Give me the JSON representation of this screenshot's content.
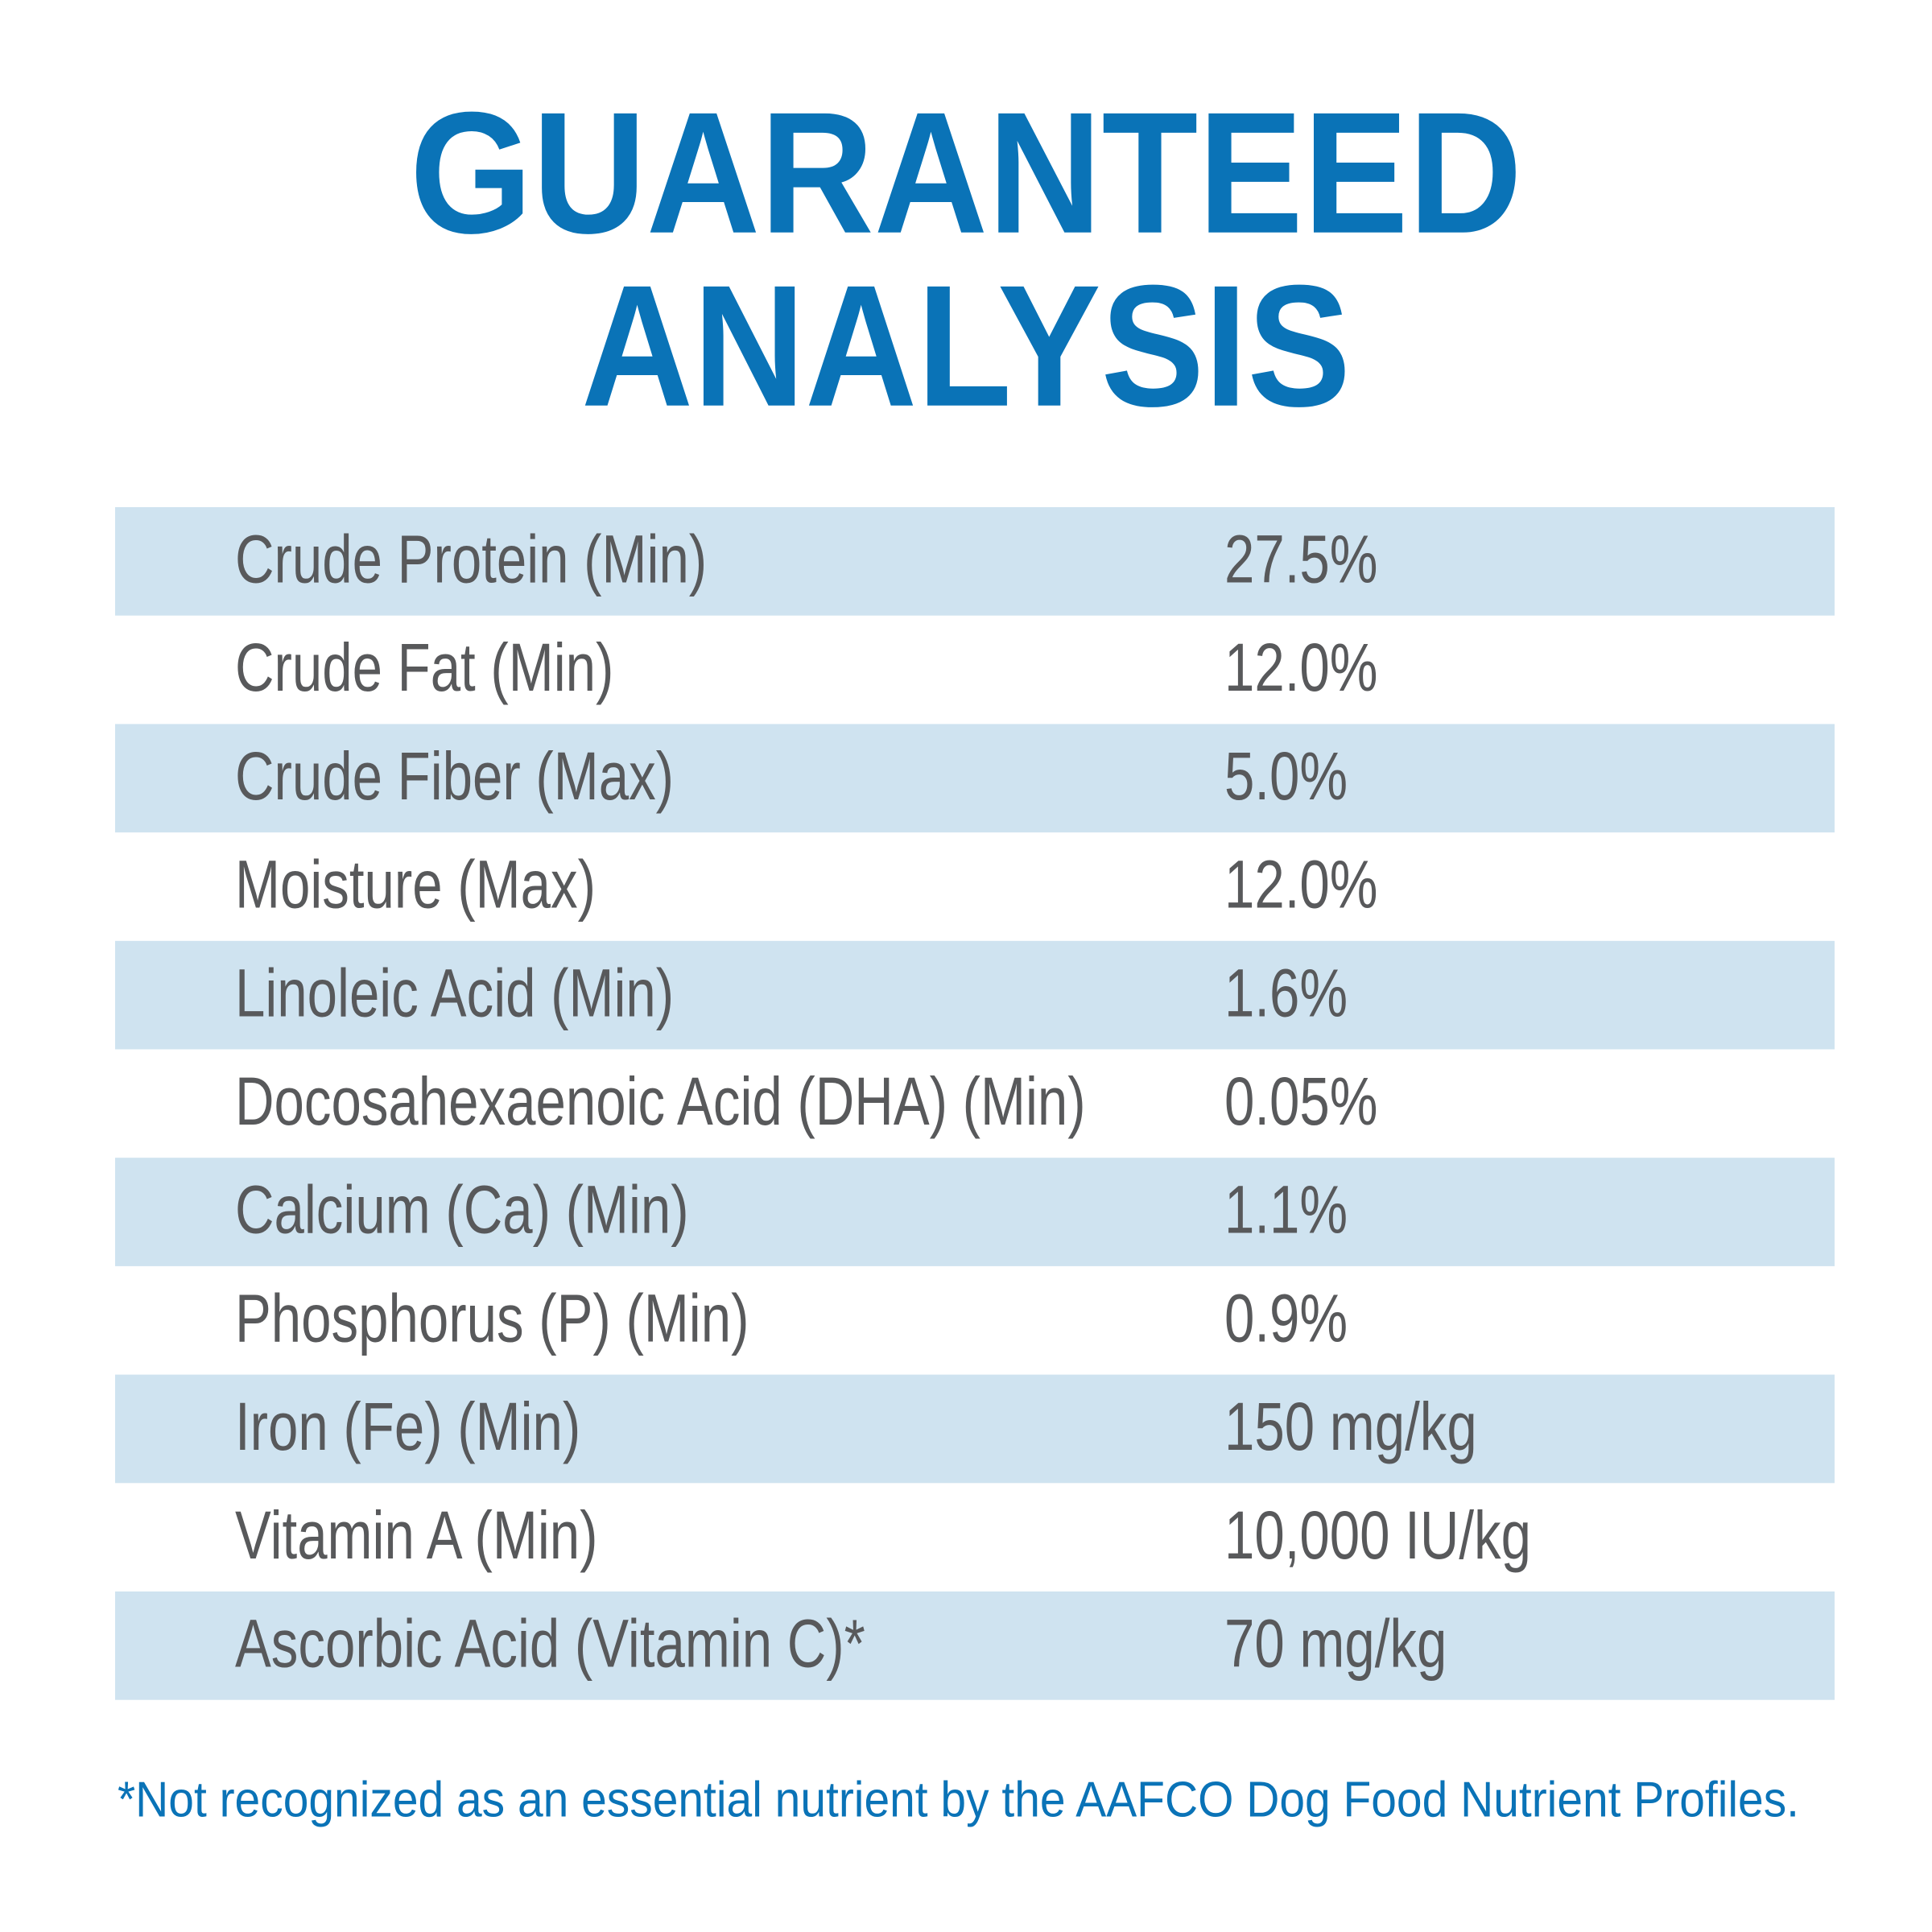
{
  "header": {
    "title": [
      "GUARANTEED",
      "ANALYSIS"
    ]
  },
  "table": {
    "rows": [
      [
        "Crude Protein (Min)",
        "27.5%"
      ],
      [
        "Crude Fat (Min)",
        "12.0%"
      ],
      [
        "Crude Fiber (Max)",
        "5.0%"
      ],
      [
        "Moisture (Max)",
        "12.0%"
      ],
      [
        "Linoleic Acid (Min)",
        "1.6%"
      ],
      [
        "Docosahexaenoic Acid (DHA) (Min)",
        "0.05%"
      ],
      [
        "Calcium (Ca) (Min)",
        "1.1%"
      ],
      [
        "Phosphorus (P) (Min)",
        "0.9%"
      ],
      [
        "Iron (Fe) (Min)",
        "150 mg/kg"
      ],
      [
        "Vitamin A (Min)",
        "10,000 IU/kg"
      ],
      [
        "Ascorbic Acid (Vitamin C)*",
        "70 mg/kg"
      ]
    ]
  },
  "footnote": "*Not recognized as an essential nutrient by the AAFCO Dog Food Nutrient Profiles."
}
